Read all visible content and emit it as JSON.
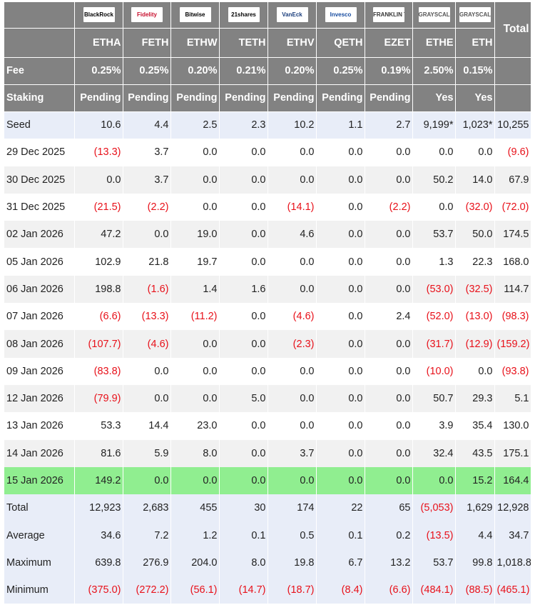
{
  "chart_data": {
    "type": "table",
    "columns": [
      "ETHA",
      "FETH",
      "ETHW",
      "TETH",
      "ETHV",
      "QETH",
      "EZET",
      "ETHE",
      "ETH",
      "Total"
    ],
    "logos": [
      {
        "text": "BlackRock",
        "icon": "blackrock-logo-icon",
        "color": "#000000"
      },
      {
        "text": "Fidelity",
        "icon": "fidelity-logo-icon",
        "color": "#c8102e"
      },
      {
        "text": "Bitwise",
        "icon": "bitwise-logo-icon",
        "color": "#000000"
      },
      {
        "text": "21shares",
        "icon": "21shares-logo-icon",
        "color": "#000000"
      },
      {
        "text": "VanEck",
        "icon": "vaneck-logo-icon",
        "color": "#1a3d7c"
      },
      {
        "text": "Invesco",
        "icon": "invesco-logo-icon",
        "color": "#1a4ea1"
      },
      {
        "text": "FRANKLIN TEMPLETON",
        "icon": "franklin-templeton-logo-icon",
        "color": "#333333"
      },
      {
        "text": "GRAYSCALE",
        "icon": "grayscale-logo-icon",
        "color": "#555555"
      },
      {
        "text": "GRAYSCALE",
        "icon": "grayscale-logo-icon",
        "color": "#555555"
      }
    ],
    "total_header": "Total",
    "fee": {
      "label": "Fee",
      "values": [
        "0.25%",
        "0.25%",
        "0.20%",
        "0.21%",
        "0.20%",
        "0.25%",
        "0.19%",
        "2.50%",
        "0.15%",
        ""
      ]
    },
    "staking": {
      "label": "Staking",
      "values": [
        "Pending",
        "Pending",
        "Pending",
        "Pending",
        "Pending",
        "Pending",
        "Pending",
        "Yes",
        "Yes",
        ""
      ]
    },
    "rows": [
      {
        "label": "Seed",
        "values": [
          "10.6",
          "4.4",
          "2.5",
          "2.3",
          "10.2",
          "1.1",
          "2.7",
          "9,199*",
          "1,023*",
          "10,255"
        ],
        "style": "seed"
      },
      {
        "label": "29 Dec 2025",
        "values": [
          "(13.3)",
          "3.7",
          "0.0",
          "0.0",
          "0.0",
          "0.0",
          "0.0",
          "0.0",
          "0.0",
          "(9.6)"
        ],
        "style": "odd"
      },
      {
        "label": "30 Dec 2025",
        "values": [
          "0.0",
          "3.7",
          "0.0",
          "0.0",
          "0.0",
          "0.0",
          "0.0",
          "50.2",
          "14.0",
          "67.9"
        ],
        "style": "even"
      },
      {
        "label": "31 Dec 2025",
        "values": [
          "(21.5)",
          "(2.2)",
          "0.0",
          "0.0",
          "(14.1)",
          "0.0",
          "(2.2)",
          "0.0",
          "(32.0)",
          "(72.0)"
        ],
        "style": "odd"
      },
      {
        "label": "02 Jan 2026",
        "values": [
          "47.2",
          "0.0",
          "19.0",
          "0.0",
          "4.6",
          "0.0",
          "0.0",
          "53.7",
          "50.0",
          "174.5"
        ],
        "style": "even"
      },
      {
        "label": "05 Jan 2026",
        "values": [
          "102.9",
          "21.8",
          "19.7",
          "0.0",
          "0.0",
          "0.0",
          "0.0",
          "1.3",
          "22.3",
          "168.0"
        ],
        "style": "odd"
      },
      {
        "label": "06 Jan 2026",
        "values": [
          "198.8",
          "(1.6)",
          "1.4",
          "1.6",
          "0.0",
          "0.0",
          "0.0",
          "(53.0)",
          "(32.5)",
          "114.7"
        ],
        "style": "even"
      },
      {
        "label": "07 Jan 2026",
        "values": [
          "(6.6)",
          "(13.3)",
          "(11.2)",
          "0.0",
          "(4.6)",
          "0.0",
          "2.4",
          "(52.0)",
          "(13.0)",
          "(98.3)"
        ],
        "style": "odd"
      },
      {
        "label": "08 Jan 2026",
        "values": [
          "(107.7)",
          "(4.6)",
          "0.0",
          "0.0",
          "(2.3)",
          "0.0",
          "0.0",
          "(31.7)",
          "(12.9)",
          "(159.2)"
        ],
        "style": "even"
      },
      {
        "label": "09 Jan 2026",
        "values": [
          "(83.8)",
          "0.0",
          "0.0",
          "0.0",
          "0.0",
          "0.0",
          "0.0",
          "(10.0)",
          "0.0",
          "(93.8)"
        ],
        "style": "odd"
      },
      {
        "label": "12 Jan 2026",
        "values": [
          "(79.9)",
          "0.0",
          "0.0",
          "5.0",
          "0.0",
          "0.0",
          "0.0",
          "50.7",
          "29.3",
          "5.1"
        ],
        "style": "even"
      },
      {
        "label": "13 Jan 2026",
        "values": [
          "53.3",
          "14.4",
          "23.0",
          "0.0",
          "0.0",
          "0.0",
          "0.0",
          "3.9",
          "35.4",
          "130.0"
        ],
        "style": "odd"
      },
      {
        "label": "14 Jan 2026",
        "values": [
          "81.6",
          "5.9",
          "8.0",
          "0.0",
          "3.7",
          "0.0",
          "0.0",
          "32.4",
          "43.5",
          "175.1"
        ],
        "style": "even"
      },
      {
        "label": "15 Jan 2026",
        "values": [
          "149.2",
          "0.0",
          "0.0",
          "0.0",
          "0.0",
          "0.0",
          "0.0",
          "0.0",
          "15.2",
          "164.4"
        ],
        "style": "hl"
      },
      {
        "label": "Total",
        "values": [
          "12,923",
          "2,683",
          "455",
          "30",
          "174",
          "22",
          "65",
          "(5,053)",
          "1,629",
          "12,928"
        ],
        "style": "sum"
      },
      {
        "label": "Average",
        "values": [
          "34.6",
          "7.2",
          "1.2",
          "0.1",
          "0.5",
          "0.1",
          "0.2",
          "(13.5)",
          "4.4",
          "34.7"
        ],
        "style": "sum"
      },
      {
        "label": "Maximum",
        "values": [
          "639.8",
          "276.9",
          "204.0",
          "8.0",
          "19.8",
          "6.7",
          "13.2",
          "53.7",
          "99.8",
          "1,018.8"
        ],
        "style": "sum"
      },
      {
        "label": "Minimum",
        "values": [
          "(375.0)",
          "(272.2)",
          "(56.1)",
          "(14.7)",
          "(18.7)",
          "(8.4)",
          "(6.6)",
          "(484.1)",
          "(88.5)",
          "(465.1)"
        ],
        "style": "sum"
      }
    ],
    "colors": {
      "header_bg": "#828282",
      "negative": "#e8111a",
      "highlight": "#90ee90",
      "seed_bg": "#e8edf8"
    }
  }
}
